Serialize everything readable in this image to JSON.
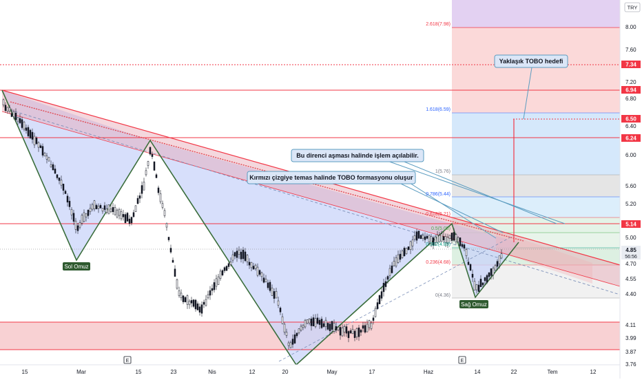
{
  "currency_button": "TRY",
  "y_axis_ticks": [
    "8.00",
    "7.60",
    "7.20",
    "6.80",
    "6.40",
    "6.00",
    "5.60",
    "5.20",
    "5.00",
    "4.70",
    "4.55",
    "4.40",
    "4.11",
    "3.99",
    "3.87",
    "3.76"
  ],
  "price_tags": {
    "t734": "7.34",
    "t694": "6.94",
    "t650": "6.50",
    "t624": "6.24",
    "t514": "5.14",
    "t485": "4.85",
    "countdown": "56:56"
  },
  "fib_labels": {
    "f2618": "2.618(7.98)",
    "f1618": "1.618(6.59)",
    "f1": "1(5.76)",
    "f0786": "0.786(5.44)",
    "f0618": "0.618(5.21)",
    "f05": "0.5(5.05)",
    "f0382": "0.382(4.89)",
    "f0236": "0.236(4.68)",
    "f0": "0(4.36)"
  },
  "callouts": {
    "target": "Yaklaşık TOBO hedefi",
    "breakout": "Bu direnci aşması halinde işlem açılabilir.",
    "red_line": "Kırmızı çizgiye temas halinde TOBO formasyonu oluşur"
  },
  "pattern_labels": {
    "left_shoulder": "Sol Omuz",
    "right_shoulder": "Sağ Omuz"
  },
  "x_axis_labels": [
    "15",
    "Mar",
    "15",
    "23",
    "Nis",
    "12",
    "20",
    "May",
    "17",
    "Haz",
    "14",
    "22",
    "Tem",
    "12"
  ],
  "earnings_marker": "E",
  "colors": {
    "bull": "#26a69a",
    "bear": "#ef5350",
    "candle": "#131722",
    "resistance": "#f23645",
    "zone_fill": "#f7c9cb",
    "triangle_fill": "#c9d4f9",
    "pattern_line": "#3b6e3c",
    "callout_line": "#5b9cc0"
  }
}
